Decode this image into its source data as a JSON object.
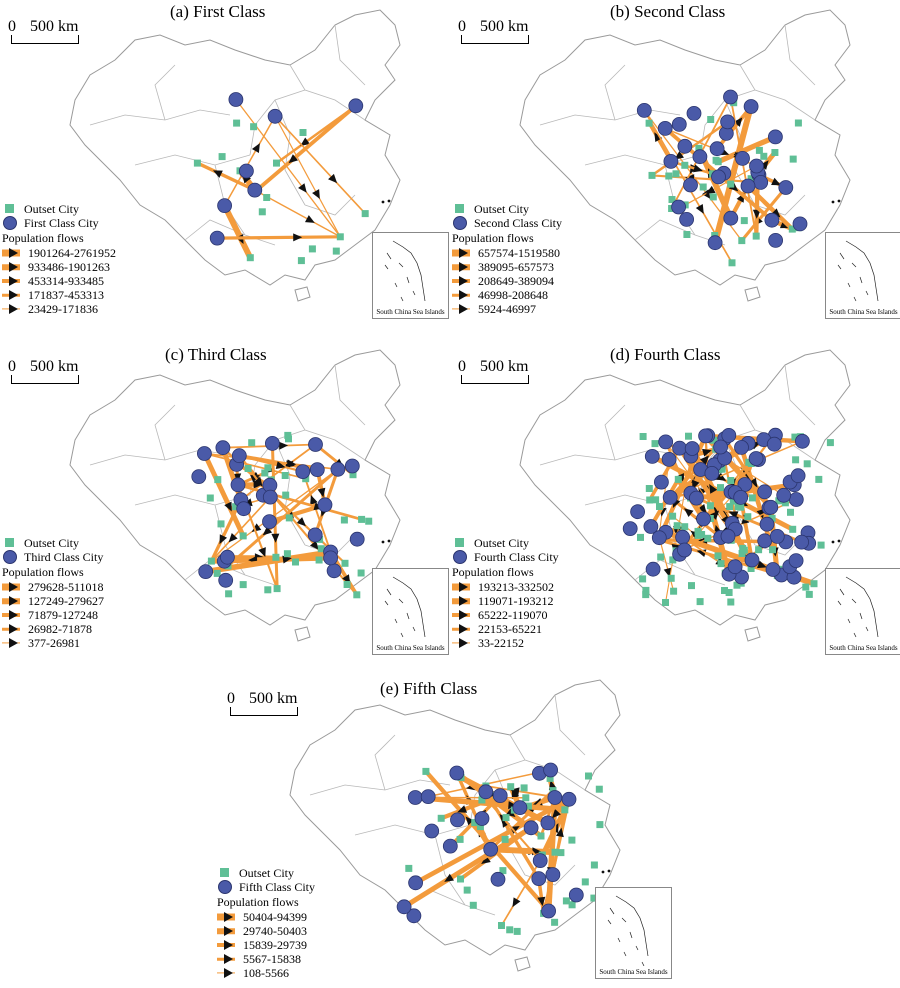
{
  "panels": [
    {
      "title": "(a) First Class",
      "scale": {
        "zero": "0",
        "label": "500 km"
      },
      "legend": {
        "outset": "Outset City",
        "class_city": "First Class City",
        "heading": "Population flows",
        "ranges": [
          "1901264-2761952",
          "933486-1901263",
          "453314-933485",
          "171837-453313",
          "23429-171836"
        ]
      },
      "inset_caption": "South China Sea Islands"
    },
    {
      "title": "(b) Second Class",
      "scale": {
        "zero": "0",
        "label": "500 km"
      },
      "legend": {
        "outset": "Outset City",
        "class_city": "Second Class City",
        "heading": "Population flows",
        "ranges": [
          "657574-1519580",
          "389095-657573",
          "208649-389094",
          "46998-208648",
          "5924-46997"
        ]
      },
      "inset_caption": "South China Sea Islands"
    },
    {
      "title": "(c) Third Class",
      "scale": {
        "zero": "0",
        "label": "500 km"
      },
      "legend": {
        "outset": "Outset City",
        "class_city": "Third Class City",
        "heading": "Population flows",
        "ranges": [
          "279628-511018",
          "127249-279627",
          "71879-127248",
          "26982-71878",
          "377-26981"
        ]
      },
      "inset_caption": "South China Sea Islands"
    },
    {
      "title": "(d) Fourth Class",
      "scale": {
        "zero": "0",
        "label": "500 km"
      },
      "legend": {
        "outset": "Outset City",
        "class_city": "Fourth Class City",
        "heading": "Population flows",
        "ranges": [
          "193213-332502",
          "119071-193212",
          "65222-119070",
          "22153-65221",
          "33-22152"
        ]
      },
      "inset_caption": "South China Sea Islands"
    },
    {
      "title": "(e) Fifth Class",
      "scale": {
        "zero": "0",
        "label": "500 km"
      },
      "legend": {
        "outset": "Outset City",
        "class_city": "Fifth Class City",
        "heading": "Population flows",
        "ranges": [
          "50404-94399",
          "29740-50403",
          "15839-29739",
          "5567-15838",
          "108-5566"
        ]
      },
      "inset_caption": "South China Sea Islands"
    }
  ],
  "colors": {
    "outset_city": "#5fbf96",
    "class_city": "#4a5aa8",
    "flow_line": "#f39b3c",
    "arrow": "#111111",
    "boundary": "#9a9a9a"
  }
}
